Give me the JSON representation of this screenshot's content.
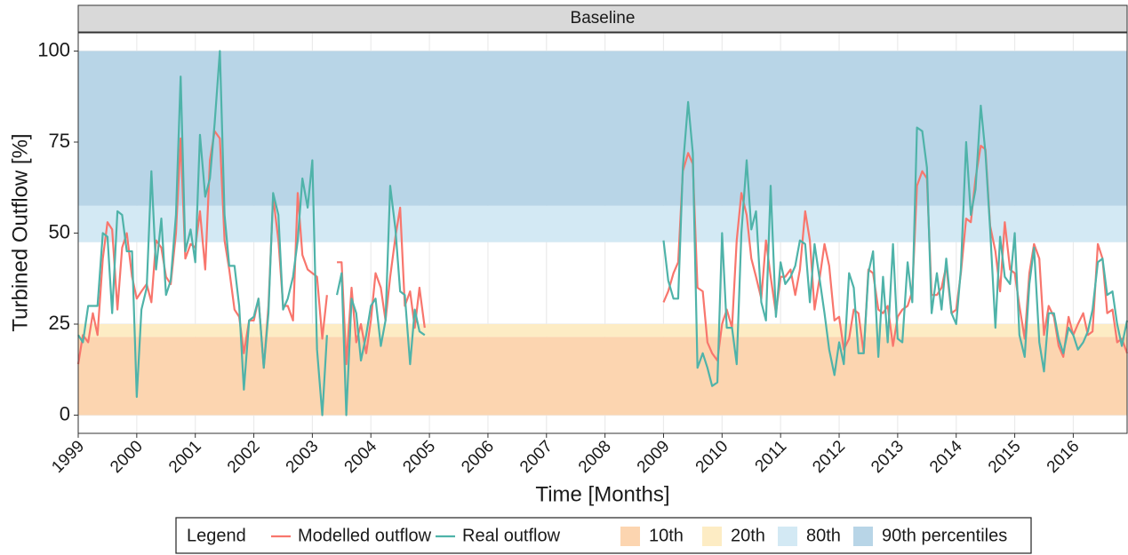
{
  "chart_data": {
    "type": "line",
    "strip_title": "Baseline",
    "x_label": "Time [Months]",
    "y_label": "Turbined Outflow [%]",
    "legend_title": "Legend",
    "x": [
      1999.0,
      1999.08,
      1999.17,
      1999.25,
      1999.33,
      1999.42,
      1999.5,
      1999.58,
      1999.67,
      1999.75,
      1999.83,
      1999.92,
      2000.0,
      2000.08,
      2000.17,
      2000.25,
      2000.33,
      2000.42,
      2000.5,
      2000.58,
      2000.67,
      2000.75,
      2000.83,
      2000.92,
      2001.0,
      2001.08,
      2001.17,
      2001.25,
      2001.33,
      2001.42,
      2001.5,
      2001.58,
      2001.67,
      2001.75,
      2001.83,
      2001.92,
      2002.0,
      2002.08,
      2002.17,
      2002.25,
      2002.33,
      2002.42,
      2002.5,
      2002.58,
      2002.67,
      2002.75,
      2002.83,
      2002.92,
      2003.0,
      2003.08,
      2003.17,
      2003.25,
      2003.33,
      2003.42,
      2003.5,
      2003.58,
      2003.67,
      2003.75,
      2003.83,
      2003.92,
      2004.0,
      2004.08,
      2004.17,
      2004.25,
      2004.33,
      2004.42,
      2004.5,
      2004.58,
      2004.67,
      2004.75,
      2004.83,
      2004.92,
      2007.0,
      2009.0,
      2009.08,
      2009.17,
      2009.25,
      2009.33,
      2009.42,
      2009.5,
      2009.58,
      2009.67,
      2009.75,
      2009.83,
      2009.92,
      2010.0,
      2010.08,
      2010.17,
      2010.25,
      2010.33,
      2010.42,
      2010.5,
      2010.58,
      2010.67,
      2010.75,
      2010.83,
      2010.92,
      2011.0,
      2011.08,
      2011.17,
      2011.25,
      2011.33,
      2011.42,
      2011.5,
      2011.58,
      2011.67,
      2011.75,
      2011.83,
      2011.92,
      2012.0,
      2012.08,
      2012.17,
      2012.25,
      2012.33,
      2012.42,
      2012.5,
      2012.58,
      2012.67,
      2012.75,
      2012.83,
      2012.92,
      2013.0,
      2013.08,
      2013.17,
      2013.25,
      2013.33,
      2013.42,
      2013.5,
      2013.58,
      2013.67,
      2013.75,
      2013.83,
      2013.92,
      2014.0,
      2014.08,
      2014.17,
      2014.25,
      2014.33,
      2014.42,
      2014.5,
      2014.58,
      2014.67,
      2014.75,
      2014.83,
      2014.92,
      2015.0,
      2015.08,
      2015.17,
      2015.25,
      2015.33,
      2015.42,
      2015.5,
      2015.58,
      2015.67,
      2015.75,
      2015.83,
      2015.92,
      2016.0,
      2016.08,
      2016.17,
      2016.25,
      2016.33,
      2016.42,
      2016.5,
      2016.58,
      2016.67,
      2016.75,
      2016.83,
      2016.92
    ],
    "series": [
      {
        "name": "Modelled outflow",
        "color": "#f8766d",
        "values": [
          14,
          22,
          20,
          28,
          22,
          43,
          53,
          51,
          29,
          46,
          50,
          38,
          32,
          34,
          36,
          31,
          48,
          46,
          38,
          36,
          50,
          76,
          43,
          47,
          46,
          56,
          40,
          70,
          78,
          76,
          48,
          40,
          29,
          27,
          17,
          26,
          26,
          32,
          13,
          30,
          60,
          48,
          30,
          30,
          26,
          61,
          44,
          40,
          39,
          38,
          21,
          33,
          null,
          42,
          42,
          14,
          35,
          20,
          25,
          17,
          26,
          39,
          35,
          26,
          38,
          49,
          57,
          30,
          34,
          24,
          35,
          24,
          null,
          31,
          34,
          39,
          42,
          67,
          72,
          69,
          35,
          34,
          20,
          17,
          15,
          25,
          29,
          24,
          48,
          61,
          55,
          43,
          38,
          32,
          48,
          38,
          28,
          38,
          38,
          40,
          33,
          40,
          56,
          48,
          29,
          38,
          47,
          41,
          26,
          27,
          18,
          21,
          29,
          28,
          17,
          40,
          39,
          29,
          28,
          30,
          19,
          27,
          29,
          30,
          34,
          63,
          67,
          65,
          33,
          33,
          35,
          41,
          28,
          29,
          39,
          54,
          53,
          65,
          74,
          73,
          52,
          45,
          34,
          53,
          40,
          39,
          30,
          21,
          39,
          47,
          43,
          22,
          30,
          27,
          19,
          16,
          27,
          22,
          25,
          28,
          22,
          23,
          47,
          43,
          28,
          29,
          20,
          21,
          17
        ]
      },
      {
        "name": "Real outflow",
        "color": "#4fb3a9",
        "values": [
          22,
          20,
          30,
          30,
          30,
          50,
          49,
          28,
          56,
          55,
          45,
          45,
          5,
          29,
          35,
          67,
          40,
          54,
          33,
          37,
          55,
          93,
          45,
          51,
          42,
          77,
          60,
          65,
          80,
          100,
          55,
          41,
          41,
          30,
          7,
          26,
          27,
          32,
          13,
          28,
          61,
          55,
          29,
          32,
          38,
          48,
          65,
          57,
          70,
          18,
          0,
          22,
          null,
          33,
          39,
          0,
          32,
          28,
          15,
          22,
          30,
          32,
          19,
          26,
          63,
          51,
          34,
          33,
          14,
          29,
          23,
          22,
          null,
          48,
          37,
          32,
          32,
          68,
          86,
          72,
          13,
          17,
          13,
          8,
          9,
          50,
          24,
          24,
          14,
          50,
          70,
          51,
          56,
          31,
          26,
          63,
          27,
          42,
          36,
          38,
          41,
          48,
          47,
          31,
          47,
          37,
          28,
          18,
          11,
          20,
          14,
          39,
          35,
          17,
          17,
          39,
          45,
          16,
          38,
          20,
          47,
          21,
          20,
          42,
          31,
          79,
          78,
          68,
          28,
          39,
          29,
          43,
          28,
          25,
          40,
          75,
          55,
          62,
          85,
          72,
          51,
          24,
          49,
          38,
          36,
          50,
          22,
          16,
          36,
          46,
          20,
          12,
          28,
          28,
          21,
          17,
          24,
          22,
          18,
          20,
          23,
          29,
          42,
          43,
          33,
          34,
          25,
          19,
          26
        ]
      }
    ],
    "bands": [
      {
        "name": "10th",
        "color": "#fcd5b0",
        "from": 0,
        "to": 21.5
      },
      {
        "name": "20th",
        "color": "#fdecc4",
        "from": 21.5,
        "to": 25
      },
      {
        "name": "80th",
        "color": "#d3e9f4",
        "from": 47.5,
        "to": 57.5
      },
      {
        "name": "90th percentiles",
        "color": "#b8d5e7",
        "from": 57.5,
        "to": 100
      }
    ],
    "xlim": [
      1999,
      2016.92
    ],
    "xticks": [
      1999,
      2000,
      2001,
      2002,
      2003,
      2004,
      2005,
      2006,
      2007,
      2008,
      2009,
      2010,
      2011,
      2012,
      2013,
      2014,
      2015,
      2016
    ],
    "ylim": [
      -5,
      105
    ],
    "yticks": [
      0,
      25,
      50,
      75,
      100
    ],
    "grid": true
  }
}
